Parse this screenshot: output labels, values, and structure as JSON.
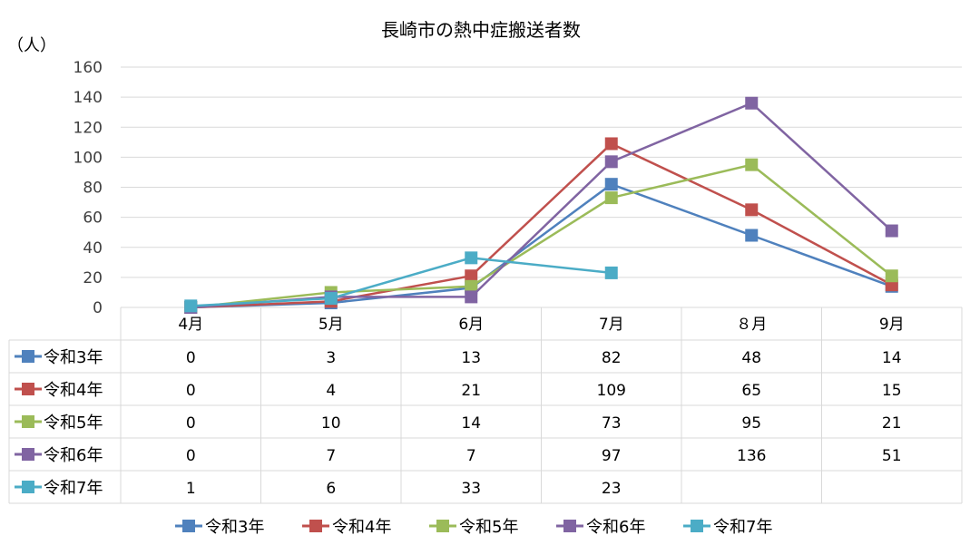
{
  "chart_data": {
    "type": "line",
    "title": "長崎市の熱中症搬送者数",
    "unit_label": "（人）",
    "ylim": [
      0,
      160
    ],
    "yticks": [
      0,
      20,
      40,
      60,
      80,
      100,
      120,
      140,
      160
    ],
    "categories": [
      "4月",
      "5月",
      "6月",
      "7月",
      "８月",
      "9月"
    ],
    "grid": true,
    "legend": "bottom",
    "table_under_axis": true,
    "series": [
      {
        "name": "令和3年",
        "color": "#4F81BD",
        "values": [
          0,
          3,
          13,
          82,
          48,
          14
        ]
      },
      {
        "name": "令和4年",
        "color": "#C0504D",
        "values": [
          0,
          4,
          21,
          109,
          65,
          15
        ]
      },
      {
        "name": "令和5年",
        "color": "#9BBB59",
        "values": [
          0,
          10,
          14,
          73,
          95,
          21
        ]
      },
      {
        "name": "令和6年",
        "color": "#8064A2",
        "values": [
          0,
          7,
          7,
          97,
          136,
          51
        ]
      },
      {
        "name": "令和7年",
        "color": "#4BACC6",
        "values": [
          1,
          6,
          33,
          23,
          null,
          null
        ]
      }
    ]
  }
}
